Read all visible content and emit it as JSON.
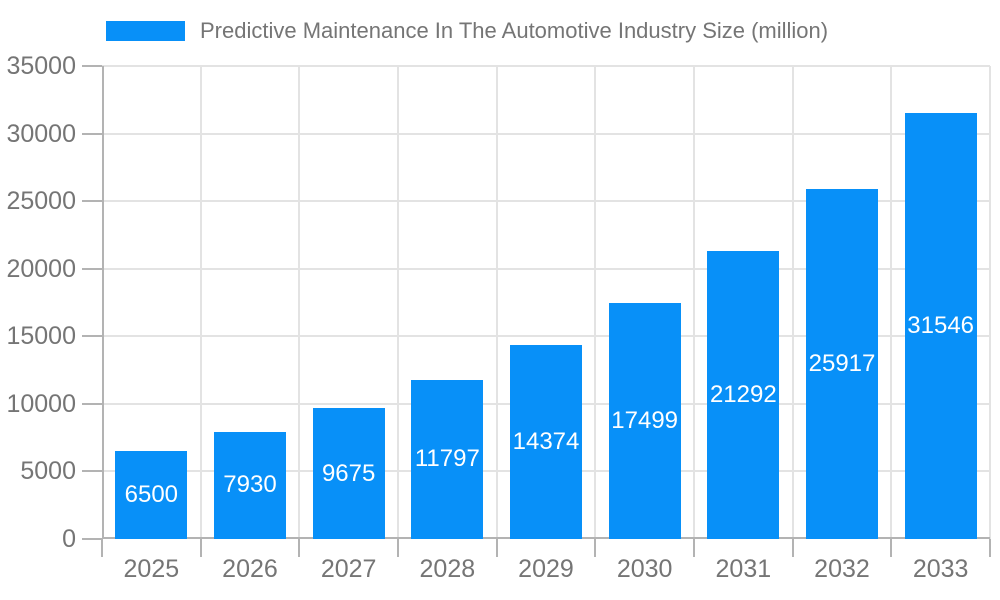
{
  "legend": {
    "label": "Predictive Maintenance In The Automotive Industry Size (million)"
  },
  "chart_data": {
    "type": "bar",
    "title": "Predictive Maintenance In The Automotive Industry Size (million)",
    "categories": [
      "2025",
      "2026",
      "2027",
      "2028",
      "2029",
      "2030",
      "2031",
      "2032",
      "2033"
    ],
    "values": [
      6500,
      7930,
      9675,
      11797,
      14374,
      17499,
      21292,
      25917,
      31546
    ],
    "series": [
      {
        "name": "Predictive Maintenance In The Automotive Industry Size (million)",
        "values": [
          6500,
          7930,
          9675,
          11797,
          14374,
          17499,
          21292,
          25917,
          31546
        ]
      }
    ],
    "xlabel": "",
    "ylabel": "",
    "ylim": [
      0,
      35000
    ],
    "yticks": [
      0,
      5000,
      10000,
      15000,
      20000,
      25000,
      30000,
      35000
    ],
    "grid": true,
    "legend_position": "top-left",
    "bar_value_labels_visible": true,
    "colors": {
      "bar": "#0890f8",
      "grid": "#e3e3e3",
      "axis": "#b3b3b3",
      "tick_text": "#757575",
      "bar_label_text": "#ffffff",
      "background": "#ffffff"
    }
  }
}
